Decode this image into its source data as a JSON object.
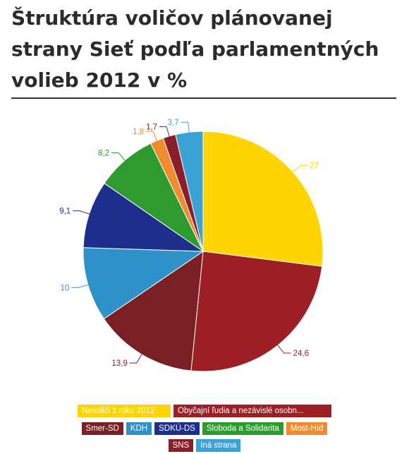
{
  "title": "Štruktúra voličov plánovanej strany Sieť podľa parlamentných volieb 2012 v %",
  "chart_data": {
    "type": "pie",
    "title": "Štruktúra voličov plánovanej strany Sieť podľa parlamentných volieb 2012 v %",
    "slices": [
      {
        "label": "Nevoliči z roku 2012",
        "value": 27,
        "value_label": "27",
        "color": "#FFD400"
      },
      {
        "label": "Obyčajní ľudia a nezávislé osobn...",
        "value": 24.6,
        "value_label": "24,6",
        "color": "#9B1F23"
      },
      {
        "label": "Smer-SD",
        "value": 13.9,
        "value_label": "13,9",
        "color": "#7A1F24"
      },
      {
        "label": "KDH",
        "value": 10,
        "value_label": "10",
        "color": "#2E92C8"
      },
      {
        "label": "SDKÚ-DS",
        "value": 9.1,
        "value_label": "9,1",
        "color": "#1E2E8C"
      },
      {
        "label": "Sloboda a Solidarita",
        "value": 8.2,
        "value_label": "8,2",
        "color": "#2E9B2E"
      },
      {
        "label": "Most-Híd",
        "value": 1.8,
        "value_label": "1,8",
        "color": "#F08C2E"
      },
      {
        "label": "SNS",
        "value": 1.7,
        "value_label": "1,7",
        "color": "#8B1E2A"
      },
      {
        "label": "Iná strana",
        "value": 3.7,
        "value_label": "3,7",
        "color": "#3BA3D3"
      }
    ],
    "legend_rows": [
      [
        0,
        1
      ],
      [
        2,
        3,
        4,
        5,
        6
      ],
      [
        7,
        8
      ]
    ],
    "legend_placement": "bottom"
  }
}
